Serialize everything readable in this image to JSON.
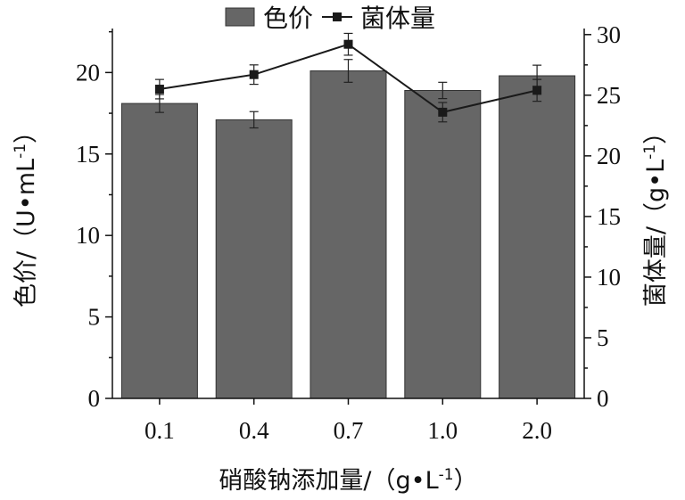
{
  "chart_data": {
    "type": "bar",
    "categories": [
      "0.1",
      "0.4",
      "0.7",
      "1.0",
      "2.0"
    ],
    "series": [
      {
        "name": "色价",
        "kind": "bar",
        "axis": "left",
        "color": "#666666",
        "values": [
          18.1,
          17.1,
          20.1,
          18.9,
          19.8
        ],
        "errors": [
          0.55,
          0.5,
          0.7,
          0.5,
          0.65
        ]
      },
      {
        "name": "菌体量",
        "kind": "line",
        "axis": "right",
        "color": "#1a1a1a",
        "values": [
          25.5,
          26.7,
          29.2,
          23.6,
          25.4
        ],
        "errors": [
          0.8,
          0.8,
          0.9,
          0.8,
          0.9
        ]
      }
    ],
    "xlabel": "硝酸钠添加量/（g•L",
    "xlabel_sup": "-1",
    "xlabel_close": "）",
    "ylabel_left": "色价/（U•mL",
    "ylabel_left_sup": "-1",
    "ylabel_left_close": "）",
    "ylabel_right": "菌体量/（g•L",
    "ylabel_right_sup": "-1",
    "ylabel_right_close": "）",
    "ylim_left": [
      0,
      22.7
    ],
    "ylim_right": [
      0,
      30.5
    ],
    "yticks_left": [
      0,
      5,
      10,
      15,
      20
    ],
    "yticks_right": [
      0,
      5,
      10,
      15,
      20,
      25,
      30
    ],
    "legend_position": "top-center",
    "grid": false
  }
}
